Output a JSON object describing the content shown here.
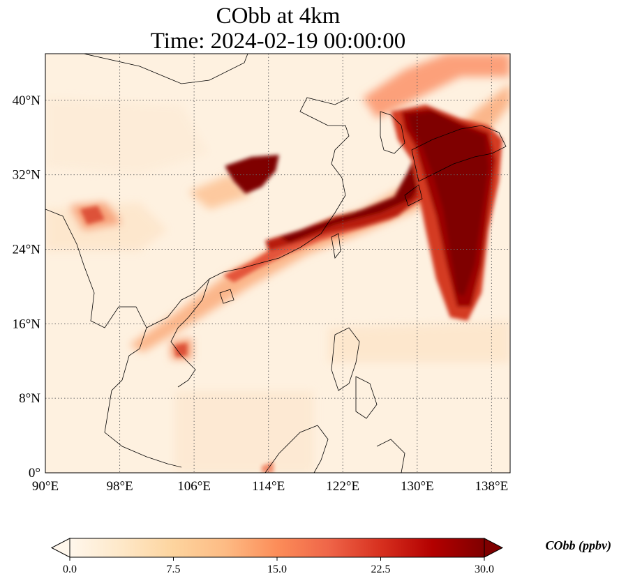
{
  "title": {
    "line1": "CObb at 4km",
    "line2": "Time: 2024-02-19 00:00:00"
  },
  "map": {
    "extent": {
      "lon_min": 90,
      "lon_max": 140,
      "lat_min": 0,
      "lat_max": 45
    },
    "lon_ticks": [
      {
        "value": 90,
        "label": "90°E"
      },
      {
        "value": 98,
        "label": "98°E"
      },
      {
        "value": 106,
        "label": "106°E"
      },
      {
        "value": 114,
        "label": "114°E"
      },
      {
        "value": 122,
        "label": "122°E"
      },
      {
        "value": 130,
        "label": "130°E"
      },
      {
        "value": 138,
        "label": "138°E"
      }
    ],
    "lat_ticks": [
      {
        "value": 0,
        "label": "0°"
      },
      {
        "value": 8,
        "label": "8°N"
      },
      {
        "value": 16,
        "label": "16°N"
      },
      {
        "value": 24,
        "label": "24°N"
      },
      {
        "value": 32,
        "label": "32°N"
      },
      {
        "value": 40,
        "label": "40°N"
      }
    ],
    "gridlines": true,
    "gridline_style": "dotted",
    "field_description_colors": {
      "background": "#fef1e0",
      "low": "#fde2c2",
      "mid": "#ef6548",
      "high": "#7f0000"
    }
  },
  "colorbar": {
    "label": "CObb (ppbv)",
    "vmin": 0.0,
    "vmax": 30.0,
    "extend": "both",
    "colormap": "OrRd",
    "ticks": [
      {
        "value": 0.0,
        "label": "0.0"
      },
      {
        "value": 7.5,
        "label": "7.5"
      },
      {
        "value": 15.0,
        "label": "15.0"
      },
      {
        "value": 22.5,
        "label": "22.5"
      },
      {
        "value": 30.0,
        "label": "30.0"
      }
    ],
    "colors": [
      "#fff7ec",
      "#fee8c8",
      "#fdd49e",
      "#fdbb84",
      "#fc8d59",
      "#ef6548",
      "#d7301f",
      "#b30000",
      "#7f0000"
    ]
  }
}
